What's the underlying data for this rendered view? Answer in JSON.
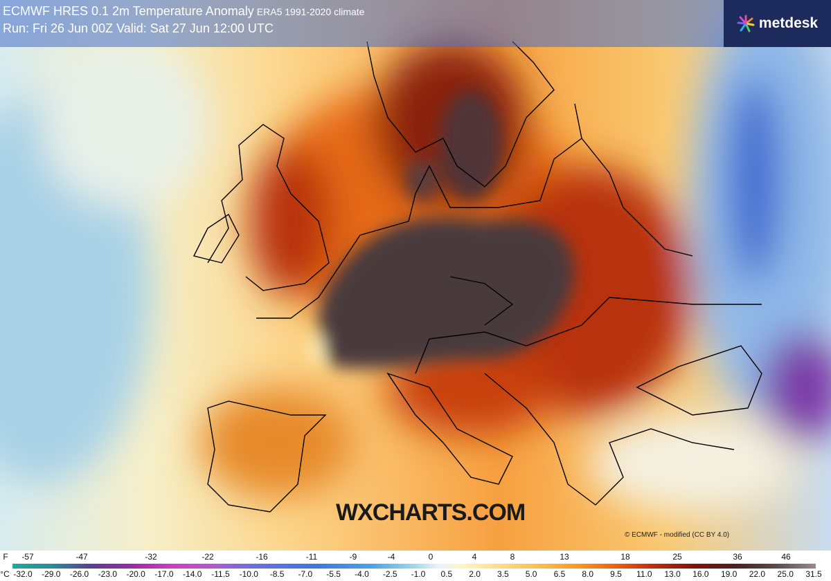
{
  "header": {
    "title": "ECMWF HRES 0.1 2m Temperature Anomaly",
    "climate": "ERA5 1991-2020 climate",
    "run": "Run: Fri 26 Jun 00Z Valid: Sat 27 Jun 12:00 UTC"
  },
  "logo": "metdesk",
  "watermark": "WXCHARTS.COM",
  "credit": "© ECMWF - modified (CC BY 4.0)",
  "colorbar": {
    "f_unit": "F",
    "f_labels": [
      "-57",
      "-47",
      "-32",
      "-22",
      "-16",
      "-11",
      "-9",
      "-4",
      "0",
      "4",
      "8",
      "13",
      "18",
      "25",
      "36",
      "46"
    ],
    "c_unit": "°C",
    "c_labels": [
      "-32.0",
      "-29.0",
      "-26.0",
      "-23.0",
      "-20.0",
      "-17.0",
      "-14.0",
      "-11.5",
      "-10.0",
      "-8.5",
      "-7.0",
      "-5.5",
      "-4.0",
      "-2.5",
      "-1.0",
      "0.5",
      "2.0",
      "3.5",
      "5.0",
      "6.5",
      "8.0",
      "9.5",
      "11.0",
      "13.0",
      "16.0",
      "19.0",
      "22.0",
      "25.0",
      "31.5"
    ]
  }
}
